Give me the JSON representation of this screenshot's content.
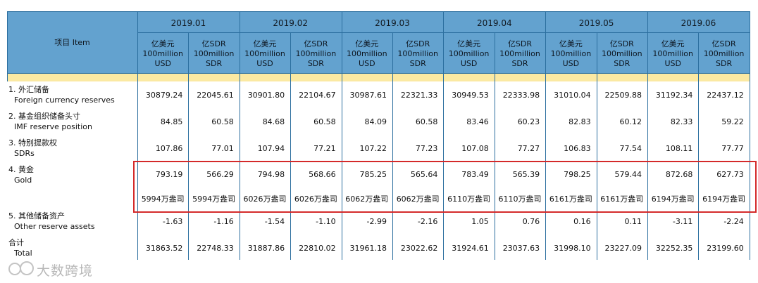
{
  "header": {
    "item_label": "项目 Item",
    "months": [
      "2019.01",
      "2019.02",
      "2019.03",
      "2019.04",
      "2019.05",
      "2019.06"
    ],
    "col_usd": {
      "l1": "亿美元",
      "l2": "100million",
      "l3": "USD"
    },
    "col_sdr": {
      "l1": "亿SDR",
      "l2": "100million",
      "l3": "SDR"
    }
  },
  "rows": [
    {
      "zh": "1.  外汇储备",
      "en": "Foreign currency reserves",
      "values": [
        "30879.24",
        "22045.61",
        "30901.80",
        "22104.67",
        "30987.61",
        "22321.33",
        "30949.53",
        "22333.98",
        "31010.04",
        "22509.88",
        "31192.34",
        "22437.12"
      ]
    },
    {
      "zh": "2.  基金组织储备头寸",
      "en": "IMF reserve position",
      "values": [
        "84.85",
        "60.58",
        "84.68",
        "60.58",
        "84.09",
        "60.58",
        "83.46",
        "60.23",
        "82.83",
        "60.12",
        "82.33",
        "59.22"
      ]
    },
    {
      "zh": "3.  特别提款权",
      "en": "SDRs",
      "values": [
        "107.86",
        "77.01",
        "107.94",
        "77.21",
        "107.22",
        "77.23",
        "107.08",
        "77.27",
        "106.83",
        "77.54",
        "108.11",
        "77.77"
      ]
    },
    {
      "zh": "4.  黄金",
      "en": "Gold",
      "values": [
        "793.19",
        "566.29",
        "794.98",
        "568.66",
        "785.25",
        "565.64",
        "783.49",
        "565.39",
        "798.25",
        "579.44",
        "872.68",
        "627.73"
      ],
      "ounces": [
        "5994万盎司",
        "5994万盎司",
        "6026万盎司",
        "6026万盎司",
        "6062万盎司",
        "6062万盎司",
        "6110万盎司",
        "6110万盎司",
        "6161万盎司",
        "6161万盎司",
        "6194万盎司",
        "6194万盎司"
      ]
    },
    {
      "zh": "5.  其他储备资产",
      "en": "Other reserve assets",
      "values": [
        "-1.63",
        "-1.16",
        "-1.54",
        "-1.10",
        "-2.99",
        "-2.16",
        "1.05",
        "0.76",
        "0.16",
        "0.11",
        "-3.11",
        "-2.24"
      ]
    },
    {
      "zh": "合计",
      "en": "Total",
      "values": [
        "31863.52",
        "22748.33",
        "31887.86",
        "22810.02",
        "31961.18",
        "23022.62",
        "31924.61",
        "23037.63",
        "31998.10",
        "23227.09",
        "32252.35",
        "23199.60"
      ]
    }
  ],
  "watermark": {
    "text": "大数跨境",
    "icon": "infinity-logo-icon"
  },
  "colors": {
    "header": "#63a2cf",
    "band": "#fbe9a2",
    "highlight": "#d42a2a"
  }
}
